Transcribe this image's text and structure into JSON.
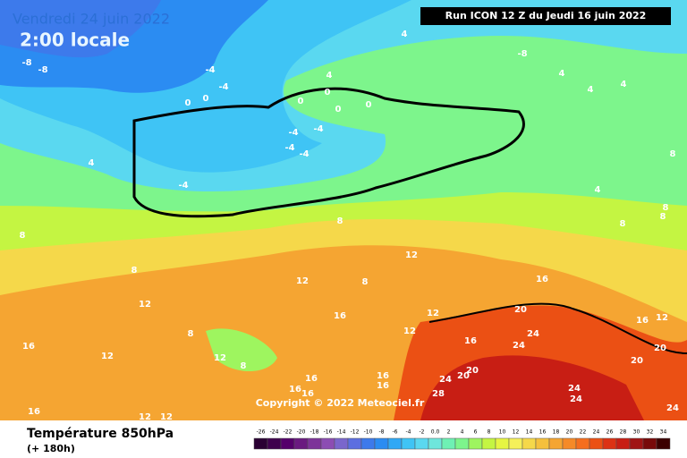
{
  "header": {
    "date": "Vendredi 24 juin 2022",
    "time": "2:00 locale",
    "run": "Run ICON 12 Z du Jeudi 16 juin 2022"
  },
  "map": {
    "copyright": "Copyright © 2022 Meteociel.fr",
    "contour_labels": [
      4,
      -8,
      -8,
      -4,
      -4,
      0,
      0,
      4,
      0,
      0,
      0,
      0,
      -4,
      -4,
      -4,
      -4,
      -4,
      4,
      -8,
      4,
      4,
      4,
      4,
      8,
      8,
      8,
      8,
      8,
      8,
      8,
      8,
      12,
      12,
      12,
      16,
      12,
      16,
      16,
      20,
      24,
      24,
      20,
      20,
      12,
      16,
      16,
      12,
      8,
      12,
      8,
      12,
      16,
      16,
      16,
      16,
      16,
      20,
      20,
      24,
      28,
      24,
      24,
      24,
      16,
      12,
      12
    ]
  },
  "legend": {
    "title": "Température 850hPa",
    "subtitle": "(+ 180h)",
    "ticks": [
      -26,
      -24,
      -22,
      -20,
      -18,
      -16,
      -14,
      -12,
      -10,
      -8,
      -6,
      -4,
      -2,
      {
        "value": 0,
        "label": "0.0"
      },
      2,
      4,
      6,
      8,
      10,
      12,
      14,
      16,
      18,
      20,
      22,
      24,
      26,
      28,
      30,
      32,
      34
    ],
    "colors": [
      "#2a0033",
      "#3f004d",
      "#55006b",
      "#6a1a80",
      "#7d3399",
      "#8c4db3",
      "#7a66cc",
      "#5c6ee0",
      "#3d7aeb",
      "#2b8cf2",
      "#30a8f5",
      "#3fc4f5",
      "#5ad8f0",
      "#6ee6dc",
      "#6ef0b4",
      "#7df58c",
      "#9ef55f",
      "#c4f542",
      "#e6f542",
      "#f5f05a",
      "#f5d84a",
      "#f5c03c",
      "#f5a532",
      "#f58a28",
      "#f56e1e",
      "#eb5014",
      "#dc3214",
      "#c81e14",
      "#a01414",
      "#780a0a",
      "#3c0000"
    ]
  }
}
